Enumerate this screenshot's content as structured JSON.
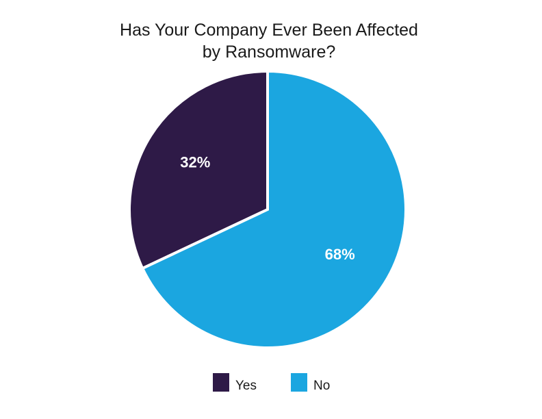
{
  "chart_data": {
    "type": "pie",
    "title": "Has Your Company Ever Been Affected by Ransomware?",
    "title_lines": [
      "Has Your Company Ever Been Affected",
      "by Ransomware?"
    ],
    "categories": [
      "Yes",
      "No"
    ],
    "values": [
      32,
      68
    ],
    "labels": [
      "32%",
      "68%"
    ],
    "colors": [
      "#2e1a47",
      "#1ba6e0"
    ],
    "legend_position": "bottom"
  }
}
